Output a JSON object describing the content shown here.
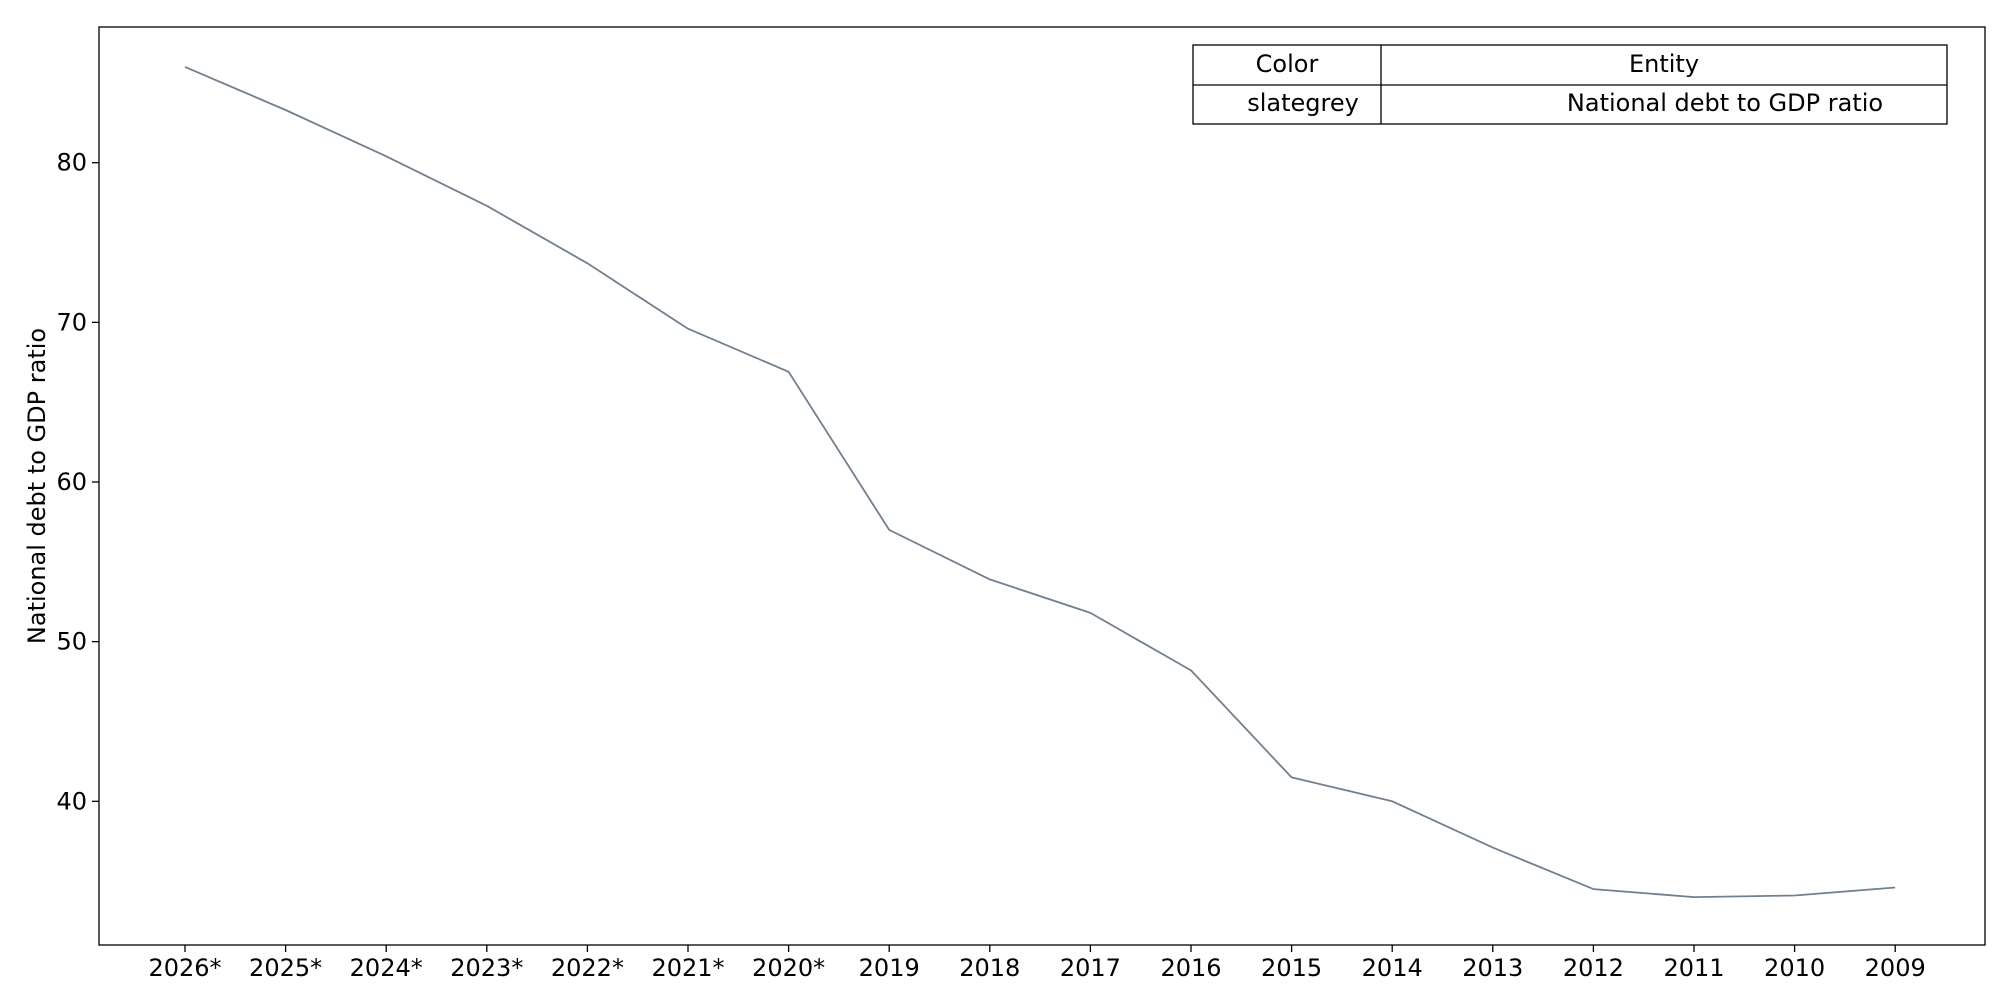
{
  "chart_data": {
    "type": "line",
    "categories": [
      "2026*",
      "2025*",
      "2024*",
      "2023*",
      "2022*",
      "2021*",
      "2020*",
      "2019",
      "2018",
      "2017",
      "2016",
      "2015",
      "2014",
      "2013",
      "2012",
      "2011",
      "2010",
      "2009"
    ],
    "series": [
      {
        "name": "National debt to GDP ratio",
        "color": "#708090",
        "values": [
          86.0,
          83.3,
          80.4,
          77.3,
          73.7,
          69.6,
          66.9,
          57.0,
          53.9,
          51.8,
          48.2,
          41.5,
          40.0,
          37.1,
          34.5,
          34.0,
          34.1,
          34.6
        ]
      }
    ],
    "xlabel": "",
    "ylabel": "National debt to GDP ratio",
    "ylim": [
      31.0,
      88.5
    ],
    "yticks": [
      40,
      50,
      60,
      70,
      80
    ],
    "grid": false,
    "legend": {
      "placement": "top-right",
      "headers": [
        "Color",
        "Entity"
      ],
      "rows": [
        [
          "slategrey",
          "National debt to GDP ratio"
        ]
      ]
    }
  }
}
